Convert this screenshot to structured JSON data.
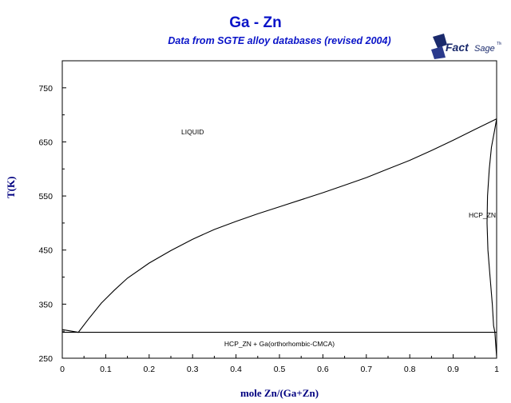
{
  "chart_data": {
    "type": "line",
    "title": "Ga - Zn",
    "subtitle": "Data from SGTE alloy databases (revised 2004)",
    "xlabel": "mole Zn/(Ga+Zn)",
    "ylabel": "T(K)",
    "xlim": [
      0,
      1
    ],
    "ylim": [
      250,
      800
    ],
    "xticks": [
      "0",
      "0.1",
      "0.2",
      "0.3",
      "0.4",
      "0.5",
      "0.6",
      "0.7",
      "0.8",
      "0.9",
      "1"
    ],
    "yticks": [
      "250",
      "350",
      "450",
      "550",
      "650",
      "750"
    ],
    "grid": false,
    "series": [
      {
        "name": "liquidus",
        "x": [
          0,
          0.037,
          0.06,
          0.09,
          0.12,
          0.15,
          0.2,
          0.25,
          0.3,
          0.35,
          0.4,
          0.45,
          0.5,
          0.55,
          0.6,
          0.65,
          0.7,
          0.75,
          0.8,
          0.85,
          0.9,
          0.95,
          1.0
        ],
        "y": [
          302.9,
          297.9,
          322,
          352,
          376,
          398,
          426,
          449,
          470,
          488,
          503,
          517,
          530,
          543,
          556,
          570,
          584,
          600,
          616,
          634,
          653,
          673,
          692.7
        ]
      },
      {
        "name": "solidus",
        "x": [
          1.0,
          0.995,
          0.988,
          0.983,
          0.979,
          0.978,
          0.98,
          0.985,
          0.99,
          0.993,
          0.996,
          0.998,
          1.0
        ],
        "y": [
          692.7,
          670,
          640,
          600,
          550,
          500,
          450,
          400,
          350,
          310,
          298,
          275,
          252
        ]
      },
      {
        "name": "eutectic",
        "x": [
          0,
          1
        ],
        "y": [
          297.9,
          297.9
        ]
      }
    ],
    "annotations": [
      {
        "text": "LIQUID",
        "x": 0.3,
        "y": 664
      },
      {
        "text": "HCP_ZN",
        "x": 0.995,
        "y": 510
      },
      {
        "text": "HCP_ZN + Ga(orthorhombic-CMCA)",
        "x": 0.5,
        "y": 272
      }
    ]
  },
  "logo": {
    "text": "FactSage"
  }
}
